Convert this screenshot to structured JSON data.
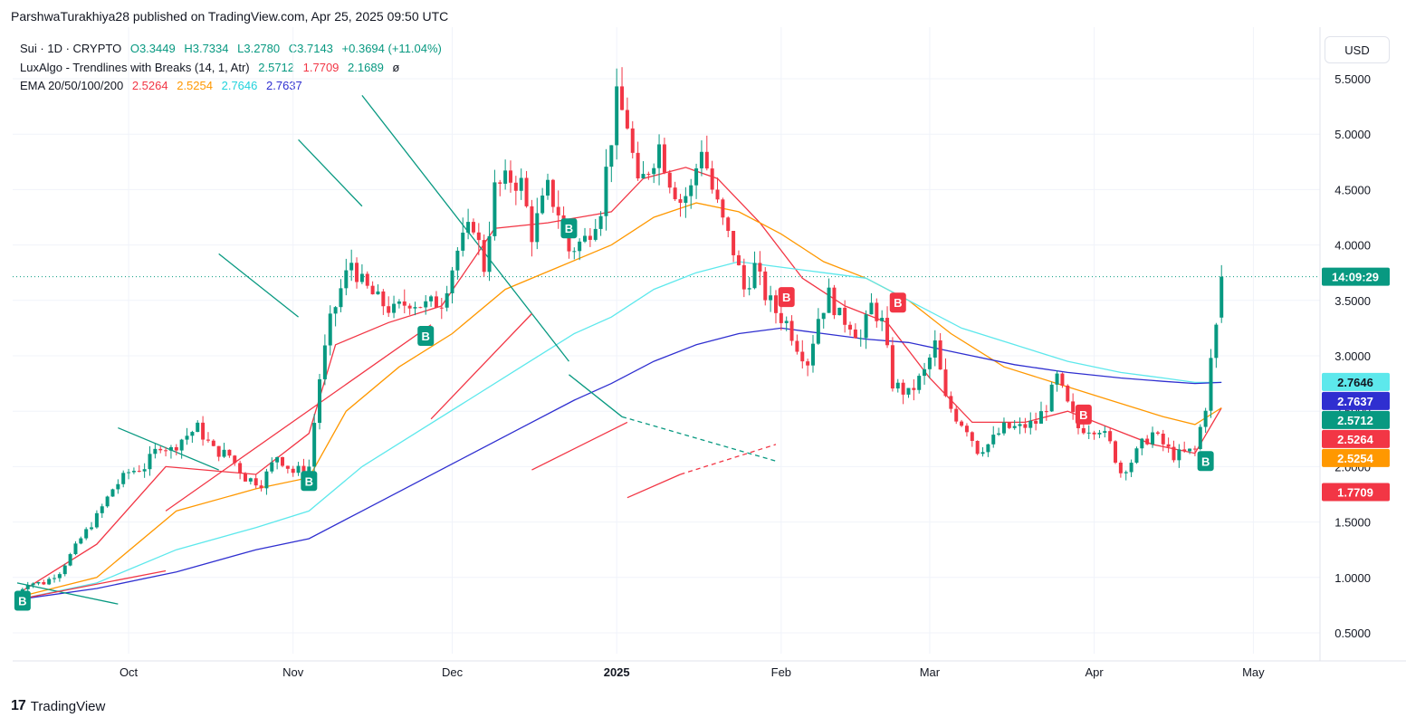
{
  "header": {
    "text": "ParshwaTurakhiya28 published on TradingView.com, Apr 25, 2025 09:50 UTC"
  },
  "legend": {
    "symbol": "Sui · 1D · CRYPTO",
    "ohlc": {
      "o": "O3.3449",
      "h": "H3.7334",
      "l": "L3.2780",
      "c": "C3.7143",
      "chg": "+0.3694 (+11.04%)"
    },
    "luxalgo": {
      "label": "LuxAlgo - Trendlines with Breaks (14, 1, Atr)",
      "v1": "2.5712",
      "v2": "1.7709",
      "v3": "2.1689",
      "v4": "ø"
    },
    "ema": {
      "label": "EMA 20/50/100/200",
      "v20": "2.5264",
      "v50": "2.5254",
      "v100": "2.7646",
      "v200": "2.7637"
    }
  },
  "currency": "USD",
  "footer": {
    "brand": "TradingView",
    "logo": "17"
  },
  "colors": {
    "up": "#089981",
    "down": "#f23645",
    "ema20": "#f23645",
    "ema50": "#ff9800",
    "ema100": "#5de8ec",
    "ema200": "#2f2fd0",
    "trendGreen": "#089981",
    "trendRed": "#f23645"
  },
  "chart_data": {
    "type": "candlestick",
    "title": "Sui · 1D · CRYPTO",
    "ylim": [
      0.3,
      5.8
    ],
    "y_ticks": [
      "5.5000",
      "5.0000",
      "4.5000",
      "4.0000",
      "3.5000",
      "3.0000",
      "2.5000",
      "2.0000",
      "1.5000",
      "1.0000",
      "0.5000"
    ],
    "x_ticks": [
      {
        "label": "Oct",
        "day": 21,
        "bold": false
      },
      {
        "label": "Nov",
        "day": 52,
        "bold": false
      },
      {
        "label": "Dec",
        "day": 82,
        "bold": false
      },
      {
        "label": "2025",
        "day": 113,
        "bold": true
      },
      {
        "label": "Feb",
        "day": 144,
        "bold": false
      },
      {
        "label": "Mar",
        "day": 172,
        "bold": false
      },
      {
        "label": "Apr",
        "day": 203,
        "bold": false
      },
      {
        "label": "May",
        "day": 233,
        "bold": false
      }
    ],
    "x_range_days": [
      -2,
      243
    ],
    "price_labels": [
      {
        "text": "14:09:29",
        "value": 3.7143,
        "color": "#089981"
      },
      {
        "text": "2.7646",
        "value": 2.7646,
        "color": "#5de8ec",
        "dark_text": true
      },
      {
        "text": "2.7637",
        "value": 2.7637,
        "color": "#2f2fd0"
      },
      {
        "text": "2.5712",
        "value": 2.5712,
        "color": "#089981"
      },
      {
        "text": "2.5264",
        "value": 2.5264,
        "color": "#f23645"
      },
      {
        "text": "2.5254",
        "value": 2.5254,
        "color": "#ff9800"
      },
      {
        "text": "1.7709",
        "value": 1.7709,
        "color": "#f23645"
      }
    ],
    "anchors": [
      [
        0,
        0.86
      ],
      [
        2,
        0.95
      ],
      [
        5,
        0.95
      ],
      [
        8,
        1.05
      ],
      [
        12,
        1.35
      ],
      [
        15,
        1.55
      ],
      [
        18,
        1.8
      ],
      [
        21,
        1.95
      ],
      [
        24,
        2.0
      ],
      [
        27,
        2.2
      ],
      [
        29,
        2.15
      ],
      [
        31,
        2.25
      ],
      [
        34,
        2.35
      ],
      [
        37,
        2.15
      ],
      [
        40,
        2.1
      ],
      [
        43,
        1.9
      ],
      [
        46,
        1.85
      ],
      [
        49,
        2.1
      ],
      [
        52,
        1.95
      ],
      [
        55,
        2.0
      ],
      [
        57,
        2.8
      ],
      [
        59,
        3.3
      ],
      [
        61,
        3.6
      ],
      [
        63,
        3.85
      ],
      [
        65,
        3.65
      ],
      [
        68,
        3.5
      ],
      [
        71,
        3.4
      ],
      [
        74,
        3.5
      ],
      [
        77,
        3.45
      ],
      [
        80,
        3.5
      ],
      [
        83,
        3.95
      ],
      [
        86,
        4.2
      ],
      [
        88,
        3.8
      ],
      [
        90,
        4.5
      ],
      [
        93,
        4.6
      ],
      [
        95,
        4.55
      ],
      [
        97,
        4.1
      ],
      [
        100,
        4.5
      ],
      [
        102,
        4.3
      ],
      [
        104,
        3.95
      ],
      [
        107,
        4.05
      ],
      [
        110,
        4.35
      ],
      [
        113,
        5.3
      ],
      [
        115,
        5.1
      ],
      [
        117,
        4.5
      ],
      [
        119,
        4.7
      ],
      [
        121,
        4.9
      ],
      [
        123,
        4.6
      ],
      [
        125,
        4.4
      ],
      [
        127,
        4.5
      ],
      [
        129,
        4.9
      ],
      [
        131,
        4.5
      ],
      [
        133,
        4.2
      ],
      [
        135,
        3.95
      ],
      [
        137,
        3.6
      ],
      [
        139,
        3.8
      ],
      [
        141,
        3.55
      ],
      [
        143,
        3.4
      ],
      [
        145,
        3.3
      ],
      [
        147,
        3.1
      ],
      [
        149,
        2.95
      ],
      [
        151,
        3.35
      ],
      [
        153,
        3.55
      ],
      [
        155,
        3.35
      ],
      [
        157,
        3.3
      ],
      [
        159,
        3.15
      ],
      [
        161,
        3.45
      ],
      [
        163,
        3.3
      ],
      [
        165,
        2.75
      ],
      [
        168,
        2.65
      ],
      [
        171,
        2.85
      ],
      [
        173,
        3.1
      ],
      [
        175,
        2.6
      ],
      [
        177,
        2.45
      ],
      [
        179,
        2.35
      ],
      [
        181,
        2.15
      ],
      [
        183,
        2.2
      ],
      [
        186,
        2.35
      ],
      [
        189,
        2.35
      ],
      [
        192,
        2.4
      ],
      [
        194,
        2.55
      ],
      [
        196,
        2.8
      ],
      [
        198,
        2.55
      ],
      [
        200,
        2.35
      ],
      [
        202,
        2.35
      ],
      [
        204,
        2.35
      ],
      [
        206,
        2.2
      ],
      [
        208,
        1.95
      ],
      [
        210,
        2.05
      ],
      [
        212,
        2.2
      ],
      [
        214,
        2.3
      ],
      [
        216,
        2.2
      ],
      [
        218,
        2.1
      ],
      [
        220,
        2.12
      ],
      [
        222,
        2.15
      ],
      [
        224,
        2.55
      ],
      [
        225,
        2.95
      ],
      [
        226,
        3.25
      ],
      [
        227,
        3.71
      ]
    ],
    "series": [
      {
        "name": "EMA 20",
        "color": "#f23645",
        "points": [
          [
            0,
            0.85
          ],
          [
            15,
            1.3
          ],
          [
            28,
            2.0
          ],
          [
            45,
            1.93
          ],
          [
            55,
            2.3
          ],
          [
            60,
            3.1
          ],
          [
            70,
            3.3
          ],
          [
            80,
            3.45
          ],
          [
            90,
            4.15
          ],
          [
            100,
            4.2
          ],
          [
            112,
            4.3
          ],
          [
            118,
            4.6
          ],
          [
            126,
            4.7
          ],
          [
            132,
            4.6
          ],
          [
            140,
            4.2
          ],
          [
            148,
            3.7
          ],
          [
            156,
            3.45
          ],
          [
            164,
            3.3
          ],
          [
            172,
            2.8
          ],
          [
            180,
            2.4
          ],
          [
            190,
            2.4
          ],
          [
            198,
            2.5
          ],
          [
            206,
            2.35
          ],
          [
            214,
            2.2
          ],
          [
            222,
            2.12
          ],
          [
            227,
            2.53
          ]
        ]
      },
      {
        "name": "EMA 50",
        "color": "#ff9800",
        "points": [
          [
            0,
            0.82
          ],
          [
            15,
            1.0
          ],
          [
            30,
            1.6
          ],
          [
            45,
            1.8
          ],
          [
            55,
            1.9
          ],
          [
            62,
            2.5
          ],
          [
            72,
            2.9
          ],
          [
            82,
            3.2
          ],
          [
            92,
            3.6
          ],
          [
            102,
            3.8
          ],
          [
            112,
            4.0
          ],
          [
            120,
            4.25
          ],
          [
            128,
            4.38
          ],
          [
            136,
            4.3
          ],
          [
            144,
            4.1
          ],
          [
            152,
            3.85
          ],
          [
            160,
            3.7
          ],
          [
            168,
            3.5
          ],
          [
            176,
            3.2
          ],
          [
            186,
            2.9
          ],
          [
            196,
            2.75
          ],
          [
            206,
            2.6
          ],
          [
            216,
            2.45
          ],
          [
            222,
            2.38
          ],
          [
            227,
            2.53
          ]
        ]
      },
      {
        "name": "EMA 100",
        "color": "#5de8ec",
        "points": [
          [
            0,
            0.8
          ],
          [
            15,
            0.95
          ],
          [
            30,
            1.25
          ],
          [
            45,
            1.45
          ],
          [
            55,
            1.6
          ],
          [
            65,
            2.0
          ],
          [
            75,
            2.3
          ],
          [
            85,
            2.6
          ],
          [
            95,
            2.9
          ],
          [
            105,
            3.2
          ],
          [
            112,
            3.35
          ],
          [
            120,
            3.6
          ],
          [
            128,
            3.75
          ],
          [
            136,
            3.85
          ],
          [
            144,
            3.8
          ],
          [
            152,
            3.75
          ],
          [
            160,
            3.7
          ],
          [
            168,
            3.5
          ],
          [
            178,
            3.25
          ],
          [
            188,
            3.1
          ],
          [
            198,
            2.95
          ],
          [
            208,
            2.85
          ],
          [
            216,
            2.8
          ],
          [
            222,
            2.76
          ],
          [
            227,
            2.76
          ]
        ]
      },
      {
        "name": "EMA 200",
        "color": "#2f2fd0",
        "points": [
          [
            0,
            0.8
          ],
          [
            15,
            0.9
          ],
          [
            30,
            1.05
          ],
          [
            45,
            1.25
          ],
          [
            55,
            1.35
          ],
          [
            65,
            1.6
          ],
          [
            75,
            1.85
          ],
          [
            85,
            2.1
          ],
          [
            95,
            2.35
          ],
          [
            105,
            2.6
          ],
          [
            112,
            2.75
          ],
          [
            120,
            2.95
          ],
          [
            128,
            3.1
          ],
          [
            136,
            3.2
          ],
          [
            144,
            3.25
          ],
          [
            152,
            3.2
          ],
          [
            160,
            3.15
          ],
          [
            168,
            3.12
          ],
          [
            178,
            3.02
          ],
          [
            188,
            2.92
          ],
          [
            198,
            2.85
          ],
          [
            208,
            2.8
          ],
          [
            216,
            2.77
          ],
          [
            222,
            2.75
          ],
          [
            227,
            2.76
          ]
        ]
      }
    ],
    "trendlines": [
      {
        "color": "#089981",
        "from": [
          0,
          0.95
        ],
        "to": [
          19,
          0.76
        ]
      },
      {
        "color": "#089981",
        "from": [
          19,
          2.35
        ],
        "to": [
          38,
          1.97
        ]
      },
      {
        "color": "#089981",
        "from": [
          38,
          3.92
        ],
        "to": [
          53,
          3.35
        ]
      },
      {
        "color": "#089981",
        "from": [
          53,
          4.95
        ],
        "to": [
          65,
          4.35
        ]
      },
      {
        "color": "#089981",
        "from": [
          65,
          5.35
        ],
        "to": [
          104,
          2.95
        ]
      },
      {
        "color": "#089981",
        "from": [
          104,
          2.83
        ],
        "to": [
          114,
          2.45
        ]
      },
      {
        "color": "#089981",
        "from": [
          114,
          2.45
        ],
        "to": [
          143,
          2.05
        ],
        "dashed": true
      },
      {
        "color": "#f23645",
        "from": [
          0,
          0.8
        ],
        "to": [
          28,
          1.06
        ]
      },
      {
        "color": "#f23645",
        "from": [
          28,
          1.6
        ],
        "to": [
          78,
          3.28
        ]
      },
      {
        "color": "#f23645",
        "from": [
          78,
          2.43
        ],
        "to": [
          97,
          3.38
        ]
      },
      {
        "color": "#f23645",
        "from": [
          97,
          1.97
        ],
        "to": [
          115,
          2.4
        ]
      },
      {
        "color": "#f23645",
        "from": [
          115,
          1.72
        ],
        "to": [
          125,
          1.93
        ]
      },
      {
        "color": "#f23645",
        "from": [
          125,
          1.93
        ],
        "to": [
          143,
          2.2
        ],
        "dashed": true
      }
    ],
    "badges": [
      {
        "text": "B",
        "day": 1,
        "value": 0.79,
        "color": "#089981"
      },
      {
        "text": "B",
        "day": 55,
        "value": 1.87,
        "color": "#089981"
      },
      {
        "text": "B",
        "day": 77,
        "value": 3.18,
        "color": "#089981"
      },
      {
        "text": "B",
        "day": 104,
        "value": 4.15,
        "color": "#089981"
      },
      {
        "text": "B",
        "day": 145,
        "value": 3.53,
        "color": "#f23645"
      },
      {
        "text": "B",
        "day": 166,
        "value": 3.48,
        "color": "#f23645"
      },
      {
        "text": "B",
        "day": 201,
        "value": 2.47,
        "color": "#f23645"
      },
      {
        "text": "B",
        "day": 224,
        "value": 2.05,
        "color": "#089981"
      }
    ]
  }
}
